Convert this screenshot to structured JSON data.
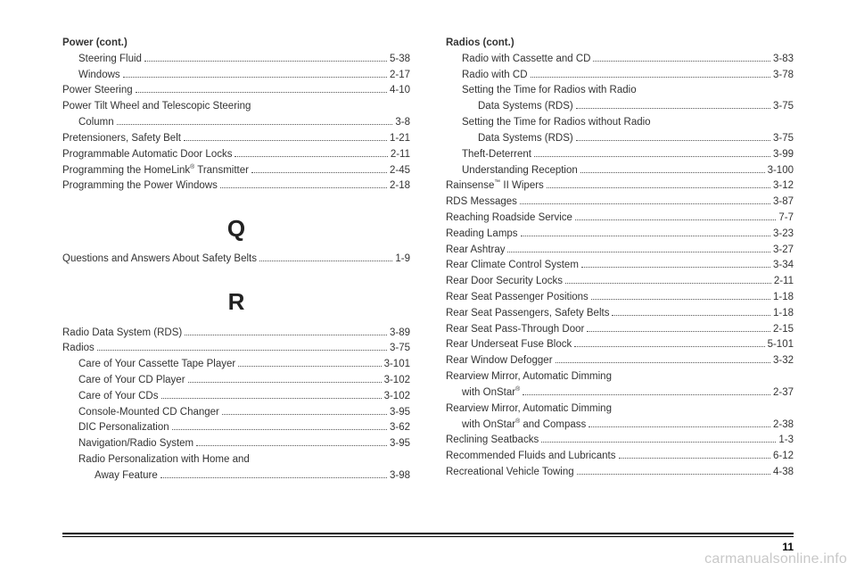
{
  "pageNumber": "11",
  "watermark": "carmanualsonline.info",
  "left": [
    {
      "label": "Power (cont.)",
      "page": "",
      "bold": true
    },
    {
      "label": "Steering Fluid",
      "page": "5-38",
      "indent": 1
    },
    {
      "label": "Windows",
      "page": "2-17",
      "indent": 1
    },
    {
      "label": "Power Steering",
      "page": "4-10"
    },
    {
      "label": "Power Tilt Wheel and Telescopic Steering",
      "wrap": true
    },
    {
      "label": "Column",
      "page": "3-8",
      "indent": 1
    },
    {
      "label": "Pretensioners, Safety Belt",
      "page": "1-21"
    },
    {
      "label": "Programmable Automatic Door Locks",
      "page": "2-11"
    },
    {
      "label": "Programming the HomeLink® Transmitter",
      "page": "2-45"
    },
    {
      "label": "Programming the Power Windows",
      "page": "2-18"
    },
    {
      "letter": "Q"
    },
    {
      "label": "Questions and Answers About Safety Belts",
      "page": "1-9"
    },
    {
      "letter": "R"
    },
    {
      "label": "Radio Data System (RDS)",
      "page": "3-89"
    },
    {
      "label": "Radios",
      "page": "3-75"
    },
    {
      "label": "Care of Your Cassette Tape Player",
      "page": "3-101",
      "indent": 1
    },
    {
      "label": "Care of Your CD Player",
      "page": "3-102",
      "indent": 1
    },
    {
      "label": "Care of Your CDs",
      "page": "3-102",
      "indent": 1
    },
    {
      "label": "Console-Mounted CD Changer",
      "page": "3-95",
      "indent": 1
    },
    {
      "label": "DIC Personalization",
      "page": "3-62",
      "indent": 1
    },
    {
      "label": "Navigation/Radio System",
      "page": "3-95",
      "indent": 1
    },
    {
      "label": "Radio Personalization with Home and",
      "wrap": true,
      "indent": 1
    },
    {
      "label": "Away Feature",
      "page": "3-98",
      "indent": 2
    }
  ],
  "right": [
    {
      "label": "Radios (cont.)",
      "page": "",
      "bold": true
    },
    {
      "label": "Radio with Cassette and CD",
      "page": "3-83",
      "indent": 1
    },
    {
      "label": "Radio with CD",
      "page": "3-78",
      "indent": 1
    },
    {
      "label": "Setting the Time for Radios with Radio",
      "wrap": true,
      "indent": 1
    },
    {
      "label": "Data Systems (RDS)",
      "page": "3-75",
      "indent": 2
    },
    {
      "label": "Setting the Time for Radios without Radio",
      "wrap": true,
      "indent": 1
    },
    {
      "label": "Data Systems (RDS)",
      "page": "3-75",
      "indent": 2
    },
    {
      "label": "Theft-Deterrent",
      "page": "3-99",
      "indent": 1
    },
    {
      "label": "Understanding Reception",
      "page": "3-100",
      "indent": 1
    },
    {
      "label": "Rainsense™ II Wipers",
      "page": "3-12"
    },
    {
      "label": "RDS Messages",
      "page": "3-87"
    },
    {
      "label": "Reaching Roadside Service",
      "page": "7-7"
    },
    {
      "label": "Reading Lamps",
      "page": "3-23"
    },
    {
      "label": "Rear Ashtray",
      "page": "3-27"
    },
    {
      "label": "Rear Climate Control System",
      "page": "3-34"
    },
    {
      "label": "Rear Door Security Locks",
      "page": "2-11"
    },
    {
      "label": "Rear Seat Passenger Positions",
      "page": "1-18"
    },
    {
      "label": "Rear Seat Passengers, Safety Belts",
      "page": "1-18"
    },
    {
      "label": "Rear Seat Pass-Through Door",
      "page": "2-15"
    },
    {
      "label": "Rear Underseat Fuse Block",
      "page": "5-101"
    },
    {
      "label": "Rear Window Defogger",
      "page": "3-32"
    },
    {
      "label": "Rearview Mirror, Automatic Dimming",
      "wrap": true
    },
    {
      "label": "with OnStar®",
      "page": "2-37",
      "indent": 1
    },
    {
      "label": "Rearview Mirror, Automatic Dimming",
      "wrap": true
    },
    {
      "label": "with OnStar® and Compass",
      "page": "2-38",
      "indent": 1
    },
    {
      "label": "Reclining Seatbacks",
      "page": "1-3"
    },
    {
      "label": "Recommended Fluids and Lubricants",
      "page": "6-12"
    },
    {
      "label": "Recreational Vehicle Towing",
      "page": "4-38"
    }
  ]
}
